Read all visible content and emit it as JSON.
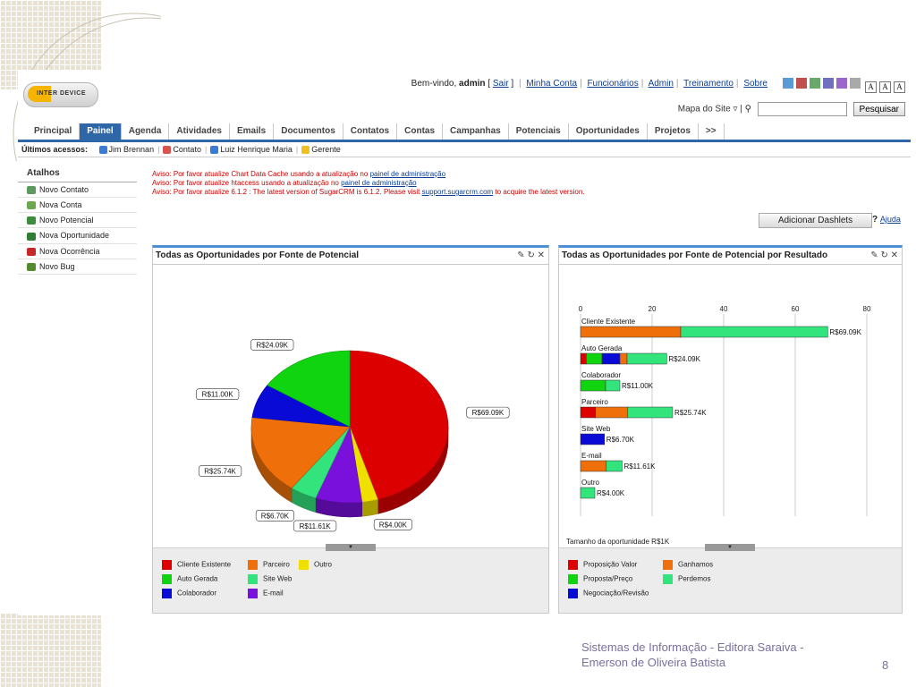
{
  "header": {
    "logo_text": "INTER DEVICE",
    "welcome": "Bem-vindo,",
    "user": "admin",
    "logout": "Sair",
    "links": [
      "Minha Conta",
      "Funcionários",
      "Admin",
      "Treinamento",
      "Sobre"
    ],
    "theme_colors": [
      "#5b9bd5",
      "#c0504d",
      "#6aa86a",
      "#7070c0",
      "#9966cc",
      "#a9a9a9"
    ],
    "font_sizes": [
      "A",
      "A",
      "A"
    ],
    "sitemap": "Mapa do Site",
    "search_value": "",
    "search_button": "Pesquisar"
  },
  "tabs": [
    "Principal",
    "Painel",
    "Agenda",
    "Atividades",
    "Emails",
    "Documentos",
    "Contatos",
    "Contas",
    "Campanhas",
    "Potenciais",
    "Oportunidades",
    "Projetos",
    ">>"
  ],
  "active_tab": "Painel",
  "shortcuts": {
    "label": "Últimos acessos:",
    "items": [
      {
        "label": "Jim Brennan",
        "icon": "contacts-icon",
        "color": "#3a7bd5"
      },
      {
        "label": "Contato",
        "icon": "calendar-icon",
        "color": "#d9534f"
      },
      {
        "label": "Luiz Henrique Maria",
        "icon": "contacts-icon",
        "color": "#3a7bd5"
      },
      {
        "label": "Gerente",
        "icon": "bell-icon",
        "color": "#f0c020"
      }
    ]
  },
  "sidebar": {
    "title": "Atalhos",
    "items": [
      {
        "label": "Novo Contato",
        "icon": "contact-card-icon",
        "color": "#5a9a5a"
      },
      {
        "label": "Nova Conta",
        "icon": "account-icon",
        "color": "#6aa84f"
      },
      {
        "label": "Novo Potencial",
        "icon": "lead-icon",
        "color": "#3c8d3c"
      },
      {
        "label": "Nova Oportunidade",
        "icon": "opportunity-icon",
        "color": "#2e7d32"
      },
      {
        "label": "Nova Ocorrência",
        "icon": "case-icon",
        "color": "#c62828"
      },
      {
        "label": "Novo Bug",
        "icon": "bug-icon",
        "color": "#558b2f"
      }
    ]
  },
  "notices": [
    {
      "text": "Aviso: Por favor atualize Chart Data Cache usando a atualização no ",
      "link": "painel de administração",
      "after": ""
    },
    {
      "text": "Aviso: Por favor atualize htaccess usando a atualização no ",
      "link": "painel de administração",
      "after": ""
    },
    {
      "text": "Aviso: Por favor atualize 6.1.2 : The latest version of SugarCRM is 6.1.2. Please visit ",
      "link": "support.sugarcrm.com",
      "after": " to acquire the latest version."
    }
  ],
  "dashlets": {
    "add_button": "Adicionar Dashlets",
    "help_mark": "?",
    "help": "Ajuda",
    "controls": "✎ ↻ ✕",
    "slider": "▼"
  },
  "chart_data": [
    {
      "type": "pie",
      "title": "Todas as Oportunidades por Fonte de Potencial",
      "slices": [
        {
          "name": "Cliente Existente",
          "value": 69.09,
          "label": "R$69.09K",
          "color": "#dd0000"
        },
        {
          "name": "Outro",
          "value": 4.0,
          "label": "R$4.00K",
          "color": "#f0e000"
        },
        {
          "name": "E-mail",
          "value": 11.61,
          "label": "R$11.61K",
          "color": "#7a10dc"
        },
        {
          "name": "Site Web",
          "value": 6.7,
          "label": "R$6.70K",
          "color": "#33e47d"
        },
        {
          "name": "Parceiro",
          "value": 25.74,
          "label": "R$25.74K",
          "color": "#ef6f0a"
        },
        {
          "name": "Colaborador",
          "value": 11.0,
          "label": "R$11.00K",
          "color": "#0a0ad6"
        },
        {
          "name": "Auto Gerada",
          "value": 24.09,
          "label": "R$24.09K",
          "color": "#11d411"
        }
      ],
      "legend": [
        {
          "name": "Cliente Existente",
          "color": "#dd0000"
        },
        {
          "name": "Parceiro",
          "color": "#ef6f0a"
        },
        {
          "name": "Outro",
          "color": "#f0e000"
        },
        {
          "name": "Auto Gerada",
          "color": "#11d411"
        },
        {
          "name": "Site Web",
          "color": "#33e47d"
        },
        {
          "name": "Colaborador",
          "color": "#0a0ad6"
        },
        {
          "name": "E-mail",
          "color": "#7a10dc"
        }
      ]
    },
    {
      "type": "bar",
      "orientation": "horizontal",
      "stacked": true,
      "title": "Todas as Oportunidades por Fonte de Potencial por Resultado",
      "xlim": [
        0,
        80
      ],
      "xticks": [
        0,
        20,
        40,
        60,
        80
      ],
      "xlabel": "Tamanho da oportunidade R$1K",
      "categories": [
        {
          "name": "Cliente Existente",
          "total": "R$69.09K",
          "segments": [
            {
              "stage": "Ganhamos",
              "value": 28
            },
            {
              "stage": "Perdemos",
              "value": 41.09
            }
          ]
        },
        {
          "name": "Auto Gerada",
          "total": "R$24.09K",
          "segments": [
            {
              "stage": "Proposição Valor",
              "value": 1.6
            },
            {
              "stage": "Proposta/Preço",
              "value": 4.4
            },
            {
              "stage": "Negociação/Revisão",
              "value": 5
            },
            {
              "stage": "Ganhamos",
              "value": 2
            },
            {
              "stage": "Perdemos",
              "value": 11.09
            }
          ]
        },
        {
          "name": "Colaborador",
          "total": "R$11.00K",
          "segments": [
            {
              "stage": "Proposta/Preço",
              "value": 7
            },
            {
              "stage": "Perdemos",
              "value": 4
            }
          ]
        },
        {
          "name": "Parceiro",
          "total": "R$25.74K",
          "segments": [
            {
              "stage": "Proposição Valor",
              "value": 4.2
            },
            {
              "stage": "Ganhamos",
              "value": 9
            },
            {
              "stage": "Perdemos",
              "value": 12.54
            }
          ]
        },
        {
          "name": "Site Web",
          "total": "R$6.70K",
          "segments": [
            {
              "stage": "Negociação/Revisão",
              "value": 6.7
            }
          ]
        },
        {
          "name": "E-mail",
          "total": "R$11.61K",
          "segments": [
            {
              "stage": "Ganhamos",
              "value": 7.2
            },
            {
              "stage": "Perdemos",
              "value": 4.41
            }
          ]
        },
        {
          "name": "Outro",
          "total": "R$4.00K",
          "segments": [
            {
              "stage": "Perdemos",
              "value": 4
            }
          ]
        }
      ],
      "legend": [
        {
          "name": "Proposição Valor",
          "color": "#dd0000"
        },
        {
          "name": "Ganhamos",
          "color": "#ef6f0a"
        },
        {
          "name": "Proposta/Preço",
          "color": "#11d411"
        },
        {
          "name": "Perdemos",
          "color": "#33e47d"
        },
        {
          "name": "Negociação/Revisão",
          "color": "#0a0ad6"
        }
      ]
    }
  ],
  "footer": {
    "line1": "Sistemas de Informação - Editora Saraiva -",
    "line2": "Emerson de Oliveira Batista",
    "page": "8"
  }
}
